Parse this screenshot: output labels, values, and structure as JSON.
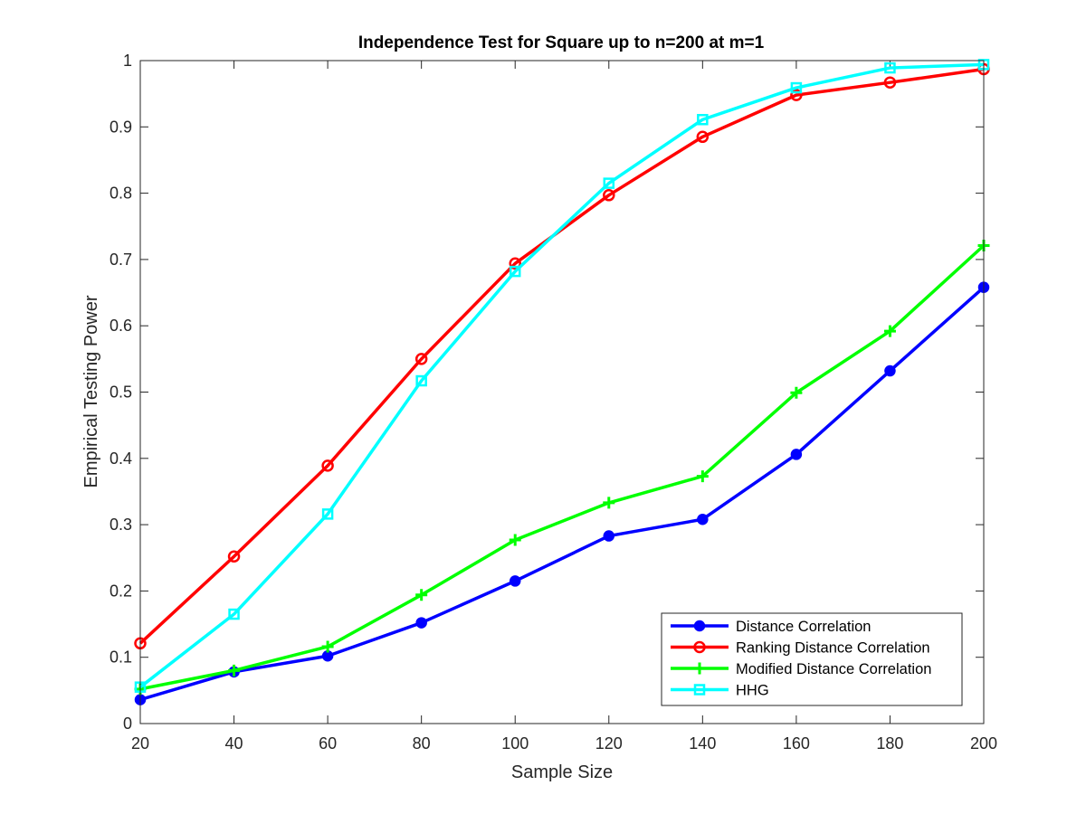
{
  "chart_data": {
    "type": "line",
    "title": "Independence Test for Square up to n=200 at m=1",
    "xlabel": "Sample Size",
    "ylabel": "Empirical Testing Power",
    "xlim": [
      20,
      200
    ],
    "ylim": [
      0,
      1
    ],
    "xticks": [
      20,
      40,
      60,
      80,
      100,
      120,
      140,
      160,
      180,
      200
    ],
    "yticks": [
      0,
      0.1,
      0.2,
      0.3,
      0.4,
      0.5,
      0.6,
      0.7,
      0.8,
      0.9,
      1
    ],
    "ytick_labels": [
      "0",
      "0.1",
      "0.2",
      "0.3",
      "0.4",
      "0.5",
      "0.6",
      "0.7",
      "0.8",
      "0.9",
      "1"
    ],
    "grid": false,
    "legend_position": "bottom-right",
    "x": [
      20,
      40,
      60,
      80,
      100,
      120,
      140,
      160,
      180,
      200
    ],
    "series": [
      {
        "name": "Distance Correlation",
        "color": "#0000ff",
        "marker": "filled-circle",
        "values": [
          0.036,
          0.078,
          0.102,
          0.152,
          0.215,
          0.283,
          0.308,
          0.406,
          0.532,
          0.658
        ]
      },
      {
        "name": "Ranking Distance Correlation",
        "color": "#ff0000",
        "marker": "open-circle",
        "values": [
          0.121,
          0.252,
          0.389,
          0.55,
          0.694,
          0.797,
          0.885,
          0.948,
          0.967,
          0.987
        ]
      },
      {
        "name": "Modified Distance Correlation",
        "color": "#00ff00",
        "marker": "plus",
        "values": [
          0.052,
          0.08,
          0.116,
          0.194,
          0.277,
          0.333,
          0.373,
          0.499,
          0.592,
          0.721
        ]
      },
      {
        "name": "HHG",
        "color": "#00ffff",
        "marker": "open-square",
        "values": [
          0.055,
          0.165,
          0.316,
          0.517,
          0.682,
          0.815,
          0.911,
          0.959,
          0.989,
          0.994
        ]
      }
    ]
  }
}
